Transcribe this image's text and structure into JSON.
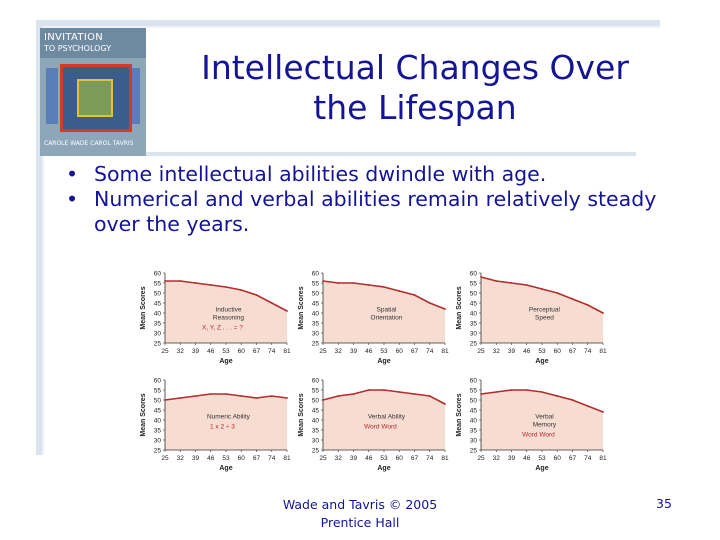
{
  "slide": {
    "title_line1": "Intellectual Changes Over",
    "title_line2": "the Lifespan",
    "bullets": [
      "Some intellectual abilities dwindle with age.",
      "Numerical and verbal abilities remain relatively steady over the years."
    ],
    "bullet_symbol": "•",
    "footer_line1": "Wade and Tavris © 2005",
    "footer_line2": "Prentice Hall",
    "page_number": "35",
    "text_color": "#141496"
  },
  "book_cover": {
    "title_line1": "INVITATION",
    "title_line2": "TO PSYCHOLOGY",
    "authors": "CAROLE WADE  CAROL TAVRIS"
  },
  "chart_data": [
    {
      "type": "line",
      "label": "Inductive Reasoning",
      "label_lines": [
        "Inductive",
        "Reasoning"
      ],
      "extra_text": "X, Y, Z . . . = ?",
      "x": [
        "25",
        "32",
        "39",
        "46",
        "53",
        "60",
        "67",
        "74",
        "81"
      ],
      "values": [
        56,
        56,
        55,
        54,
        53,
        51.5,
        49,
        45,
        41
      ],
      "xlabel": "Age",
      "ylabel": "Mean Scores",
      "ylim": [
        25,
        60
      ],
      "yticks": [
        25,
        30,
        35,
        40,
        45,
        50,
        55,
        60
      ]
    },
    {
      "type": "line",
      "label": "Spatial Orientation",
      "label_lines": [
        "Spatial",
        "Orientation"
      ],
      "extra_text": "",
      "x": [
        "25",
        "32",
        "39",
        "46",
        "53",
        "60",
        "67",
        "74",
        "81"
      ],
      "values": [
        56,
        55,
        55,
        54,
        53,
        51,
        49,
        45,
        42
      ],
      "xlabel": "Age",
      "ylabel": "Mean Scores",
      "ylim": [
        25,
        60
      ],
      "yticks": [
        25,
        30,
        35,
        40,
        45,
        50,
        55,
        60
      ]
    },
    {
      "type": "line",
      "label": "Perceptual Speed",
      "label_lines": [
        "Perceptual",
        "Speed"
      ],
      "extra_text": "",
      "x": [
        "25",
        "32",
        "39",
        "46",
        "53",
        "60",
        "67",
        "74",
        "81"
      ],
      "values": [
        58,
        56,
        55,
        54,
        52,
        50,
        47,
        44,
        40
      ],
      "xlabel": "Age",
      "ylabel": "Mean Scores",
      "ylim": [
        25,
        60
      ],
      "yticks": [
        25,
        30,
        35,
        40,
        45,
        50,
        55,
        60
      ]
    },
    {
      "type": "line",
      "label": "Numeric Ability",
      "label_lines": [
        "Numeric Ability"
      ],
      "extra_text": "1 x 2 ÷ 3",
      "x": [
        "25",
        "32",
        "39",
        "46",
        "53",
        "60",
        "67",
        "74",
        "81"
      ],
      "values": [
        50,
        51,
        52,
        53,
        53,
        52,
        51,
        52,
        51
      ],
      "xlabel": "Age",
      "ylabel": "Mean Scores",
      "ylim": [
        25,
        60
      ],
      "yticks": [
        25,
        30,
        35,
        40,
        45,
        50,
        55,
        60
      ]
    },
    {
      "type": "line",
      "label": "Verbal Ability",
      "label_lines": [
        "Verbal Ability"
      ],
      "extra_text": "Word Word",
      "x": [
        "25",
        "32",
        "39",
        "46",
        "53",
        "60",
        "67",
        "74",
        "81"
      ],
      "values": [
        50,
        52,
        53,
        55,
        55,
        54,
        53,
        52,
        48
      ],
      "xlabel": "Age",
      "ylabel": "Mean Scores",
      "ylim": [
        25,
        60
      ],
      "yticks": [
        25,
        30,
        35,
        40,
        45,
        50,
        55,
        60
      ]
    },
    {
      "type": "line",
      "label": "Verbal Memory",
      "label_lines": [
        "Verbal",
        "Memory"
      ],
      "extra_text": "Word Word",
      "x": [
        "25",
        "32",
        "39",
        "46",
        "53",
        "60",
        "67",
        "74",
        "81"
      ],
      "values": [
        53,
        54,
        55,
        55,
        54,
        52,
        50,
        47,
        44
      ],
      "xlabel": "Age",
      "ylabel": "Mean Scores",
      "ylim": [
        25,
        60
      ],
      "yticks": [
        25,
        30,
        35,
        40,
        45,
        50,
        55,
        60
      ]
    }
  ],
  "colors": {
    "line": "#b32d2d",
    "fill": "#f7dcd2",
    "axis": "#333333",
    "frame": "#dbe3f0"
  }
}
